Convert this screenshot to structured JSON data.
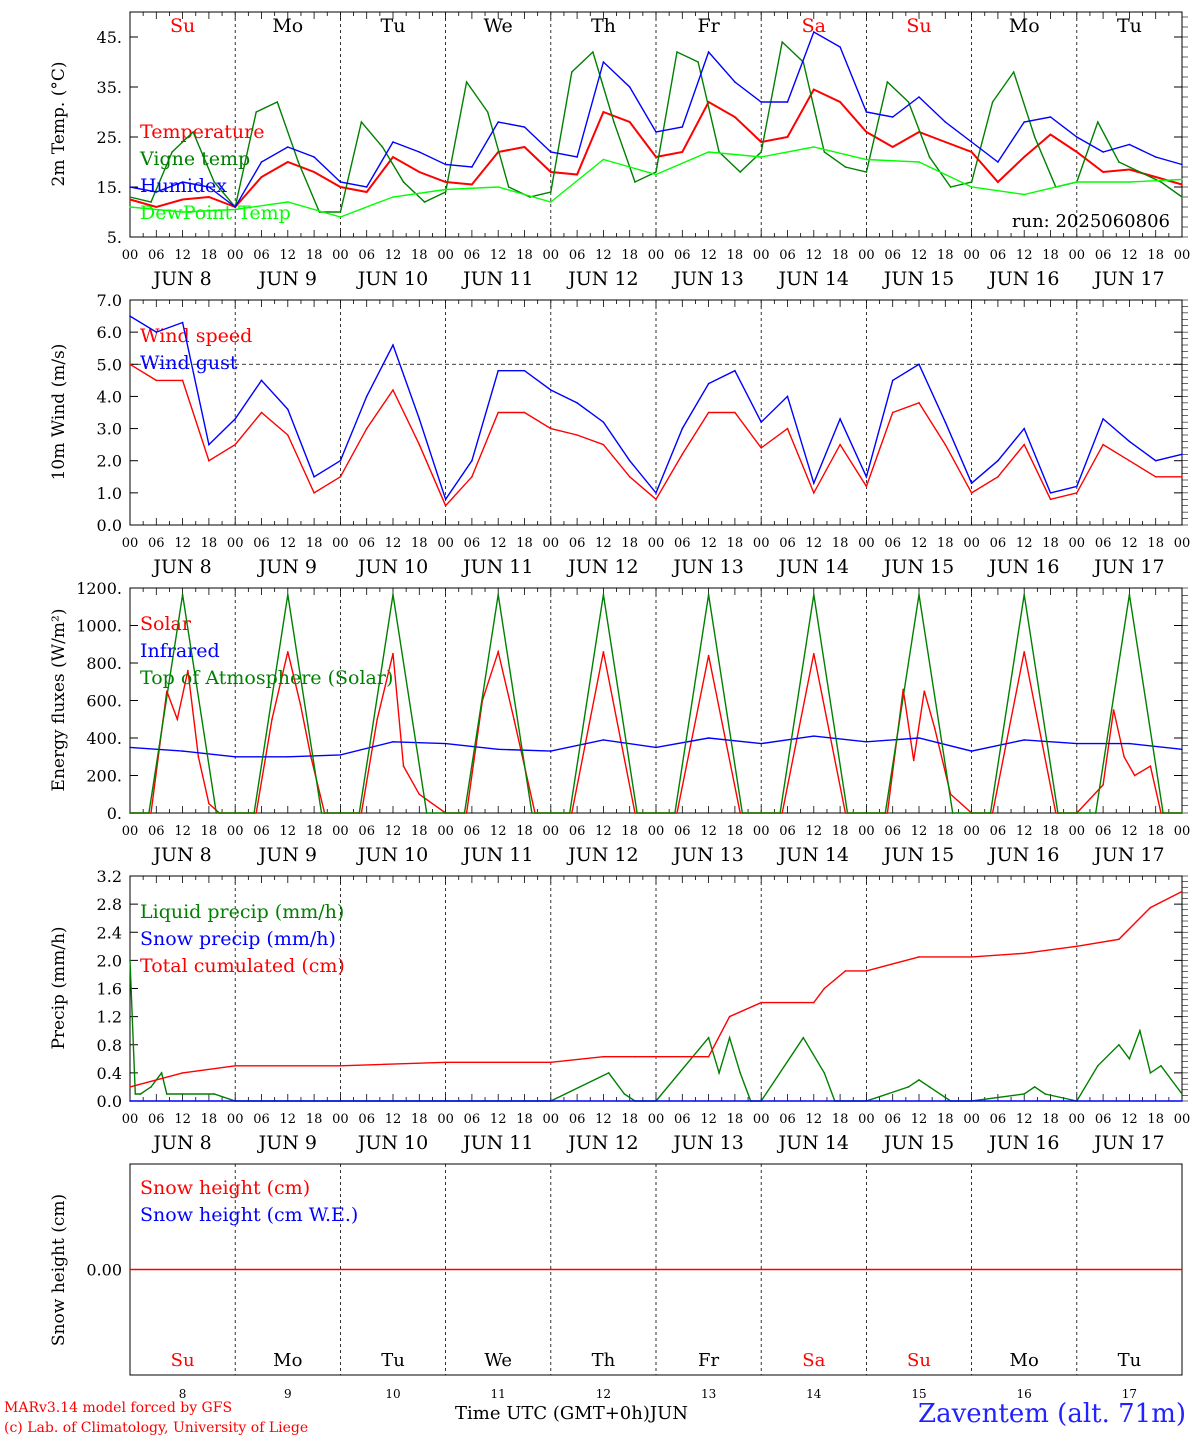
{
  "run_label": "run: 2025060806",
  "weekday_colors": {
    "weekend": "#ff0000",
    "weekday": "#000000"
  },
  "weekdays": [
    "Su",
    "Mo",
    "Tu",
    "We",
    "Th",
    "Fr",
    "Sa",
    "Su",
    "Mo",
    "Tu"
  ],
  "date_labels": [
    "JUN  8",
    "JUN  9",
    "JUN 10",
    "JUN 11",
    "JUN 12",
    "JUN 13",
    "JUN 14",
    "JUN 15",
    "JUN 16",
    "JUN 17"
  ],
  "hour_ticks": [
    "00",
    "06",
    "12",
    "18"
  ],
  "final_hour_tick": "00",
  "bottom_day_numbers": [
    "8",
    "9",
    "10",
    "11",
    "12",
    "13",
    "14",
    "15",
    "16",
    "17"
  ],
  "footer": {
    "model_line": "MARv3.14 model forced by GFS",
    "credit_line": "(c) Lab. of Climatology, University of Liege",
    "xlabel": "Time UTC (GMT+0h)",
    "month": "JUN",
    "station": "Zaventem (alt. 71m)"
  },
  "chart_data": [
    {
      "type": "line",
      "ylabel": "2m Temp. (°C)",
      "ylim": [
        5,
        50
      ],
      "yticks": [
        5,
        15,
        25,
        35,
        45
      ],
      "ytick_labels": [
        "5.",
        "15.",
        "25.",
        "35.",
        "45."
      ],
      "x_unit": "days since Jun 8 00 UTC",
      "series": [
        {
          "name": "Temperature",
          "color": "#ff0000",
          "x": [
            0,
            0.25,
            0.5,
            0.75,
            1,
            1.25,
            1.5,
            1.75,
            2,
            2.25,
            2.5,
            2.75,
            3,
            3.25,
            3.5,
            3.75,
            4,
            4.25,
            4.5,
            4.75,
            5,
            5.25,
            5.5,
            5.75,
            6,
            6.25,
            6.5,
            6.75,
            7,
            7.25,
            7.5,
            7.75,
            8,
            8.25,
            8.5,
            8.75,
            9,
            9.25,
            9.5,
            9.75,
            10
          ],
          "values": [
            12.5,
            11,
            12.5,
            13,
            11,
            17,
            20,
            18,
            15,
            14,
            21,
            18,
            16,
            15.5,
            22,
            23,
            18,
            17.5,
            30,
            28,
            21,
            22,
            32,
            29,
            24,
            25,
            34.5,
            32,
            26,
            23,
            26,
            24,
            22,
            16,
            21,
            25.5,
            22,
            18,
            18.5,
            17,
            15.5
          ]
        },
        {
          "name": "Vigne temp",
          "color": "#008000",
          "x": [
            0,
            0.2,
            0.4,
            0.6,
            0.8,
            1,
            1.2,
            1.4,
            1.6,
            1.8,
            2,
            2.2,
            2.4,
            2.6,
            2.8,
            3,
            3.2,
            3.4,
            3.6,
            3.8,
            4,
            4.2,
            4.4,
            4.6,
            4.8,
            5,
            5.2,
            5.4,
            5.6,
            5.8,
            6,
            6.2,
            6.4,
            6.6,
            6.8,
            7,
            7.2,
            7.4,
            7.6,
            7.8,
            8,
            8.2,
            8.4,
            8.6,
            8.8,
            9,
            9.2,
            9.4,
            9.6,
            9.8,
            10
          ],
          "values": [
            13,
            12,
            22,
            26,
            16,
            11,
            30,
            32,
            20,
            10,
            10,
            28,
            23,
            16,
            12,
            14,
            36,
            30,
            15,
            13,
            14,
            38,
            42,
            28,
            16,
            18,
            42,
            40,
            22,
            18,
            22,
            44,
            40,
            22,
            19,
            18,
            36,
            32,
            21,
            15,
            16,
            32,
            38,
            25,
            15,
            16,
            28,
            20,
            18,
            16,
            13
          ]
        },
        {
          "name": "Humidex",
          "color": "#0000ff",
          "x": [
            0,
            0.25,
            0.5,
            0.75,
            1,
            1.25,
            1.5,
            1.75,
            2,
            2.25,
            2.5,
            2.75,
            3,
            3.25,
            3.5,
            3.75,
            4,
            4.25,
            4.5,
            4.75,
            5,
            5.25,
            5.5,
            5.75,
            6,
            6.25,
            6.5,
            6.75,
            7,
            7.25,
            7.5,
            7.75,
            8,
            8.25,
            8.5,
            8.75,
            9,
            9.25,
            9.5,
            9.75,
            10
          ],
          "values": [
            15,
            14,
            16,
            15,
            11,
            20,
            23,
            21,
            16,
            15,
            24,
            22,
            19.5,
            19,
            28,
            27,
            22,
            21,
            40,
            35,
            26,
            27,
            42,
            36,
            32,
            32,
            46,
            43,
            30,
            29,
            33,
            28,
            24,
            20,
            28,
            29,
            25,
            22,
            23.5,
            21,
            19.5
          ]
        },
        {
          "name": "DewPoint Temp",
          "color": "#00ff00",
          "x": [
            0,
            0.5,
            1,
            1.5,
            2,
            2.5,
            3,
            3.5,
            4,
            4.5,
            5,
            5.5,
            6,
            6.5,
            7,
            7.5,
            8,
            8.5,
            9,
            9.5,
            10
          ],
          "values": [
            11,
            10,
            10.5,
            12,
            9,
            13,
            14.5,
            15,
            12,
            20.5,
            17.5,
            22,
            21,
            23,
            20.5,
            20,
            15,
            13.5,
            16,
            16,
            16.5
          ]
        }
      ]
    },
    {
      "type": "line",
      "ylabel": "10m Wind (m/s)",
      "ylim": [
        0,
        7
      ],
      "yticks": [
        0,
        1,
        2,
        3,
        4,
        5,
        6,
        7
      ],
      "ytick_labels": [
        "0.0",
        "1.0",
        "2.0",
        "3.0",
        "4.0",
        "5.0",
        "6.0",
        "7.0"
      ],
      "reference_line": 5,
      "series": [
        {
          "name": "Wind speed",
          "color": "#ff0000",
          "x": [
            0,
            0.25,
            0.5,
            0.75,
            1,
            1.25,
            1.5,
            1.75,
            2,
            2.25,
            2.5,
            2.75,
            3,
            3.25,
            3.5,
            3.75,
            4,
            4.25,
            4.5,
            4.75,
            5,
            5.25,
            5.5,
            5.75,
            6,
            6.25,
            6.5,
            6.75,
            7,
            7.25,
            7.5,
            7.75,
            8,
            8.25,
            8.5,
            8.75,
            9,
            9.25,
            9.5,
            9.75,
            10
          ],
          "values": [
            5,
            4.5,
            4.5,
            2,
            2.5,
            3.5,
            2.8,
            1,
            1.5,
            3,
            4.2,
            2.5,
            0.6,
            1.5,
            3.5,
            3.5,
            3,
            2.8,
            2.5,
            1.5,
            0.8,
            2.2,
            3.5,
            3.5,
            2.4,
            3,
            1,
            2.5,
            1.2,
            3.5,
            3.8,
            2.5,
            1,
            1.5,
            2.5,
            0.8,
            1,
            2.5,
            2,
            1.5,
            1.5
          ]
        },
        {
          "name": "Wind gust",
          "color": "#0000ff",
          "x": [
            0,
            0.25,
            0.5,
            0.75,
            1,
            1.25,
            1.5,
            1.75,
            2,
            2.25,
            2.5,
            2.75,
            3,
            3.25,
            3.5,
            3.75,
            4,
            4.25,
            4.5,
            4.75,
            5,
            5.25,
            5.5,
            5.75,
            6,
            6.25,
            6.5,
            6.75,
            7,
            7.25,
            7.5,
            7.75,
            8,
            8.25,
            8.5,
            8.75,
            9,
            9.25,
            9.5,
            9.75,
            10
          ],
          "values": [
            6.5,
            6,
            6.3,
            2.5,
            3.3,
            4.5,
            3.6,
            1.5,
            2,
            4,
            5.6,
            3.3,
            0.8,
            2,
            4.8,
            4.8,
            4.2,
            3.8,
            3.2,
            2,
            1,
            3,
            4.4,
            4.8,
            3.2,
            4,
            1.3,
            3.3,
            1.5,
            4.5,
            5,
            3.2,
            1.3,
            2,
            3,
            1,
            1.2,
            3.3,
            2.6,
            2,
            2.2
          ]
        }
      ]
    },
    {
      "type": "line",
      "ylabel": "Energy fluxes (W/m²)",
      "ylim": [
        0,
        1200
      ],
      "yticks": [
        0,
        200,
        400,
        600,
        800,
        1000,
        1200
      ],
      "ytick_labels": [
        "0.",
        "200.",
        "400.",
        "600.",
        "800.",
        "1000.",
        "1200."
      ],
      "series": [
        {
          "name": "Solar",
          "color": "#ff0000",
          "x": [
            0,
            0.2,
            0.35,
            0.45,
            0.55,
            0.65,
            0.75,
            0.85,
            1,
            1.2,
            1.35,
            1.5,
            1.62,
            1.72,
            1.85,
            2,
            2.2,
            2.35,
            2.5,
            2.6,
            2.75,
            3,
            3.2,
            3.35,
            3.5,
            3.65,
            3.85,
            4,
            4.2,
            4.5,
            4.8,
            5,
            5.2,
            5.5,
            5.8,
            6,
            6.2,
            6.5,
            6.8,
            7,
            7.2,
            7.35,
            7.45,
            7.55,
            7.65,
            7.8,
            8,
            8.2,
            8.5,
            8.8,
            9,
            9.25,
            9.35,
            9.45,
            9.55,
            9.7,
            9.8,
            10
          ],
          "values": [
            0,
            0,
            650,
            500,
            760,
            300,
            50,
            0,
            0,
            0,
            500,
            860,
            580,
            300,
            0,
            0,
            0,
            500,
            850,
            250,
            100,
            0,
            0,
            600,
            860,
            500,
            0,
            0,
            0,
            860,
            0,
            0,
            0,
            840,
            0,
            0,
            0,
            850,
            0,
            0,
            0,
            660,
            280,
            650,
            450,
            100,
            0,
            0,
            860,
            0,
            0,
            150,
            550,
            300,
            200,
            250,
            0,
            0
          ]
        },
        {
          "name": "Infrared",
          "color": "#0000ff",
          "x": [
            0,
            0.5,
            1,
            1.5,
            2,
            2.5,
            3,
            3.5,
            4,
            4.5,
            5,
            5.5,
            6,
            6.5,
            7,
            7.5,
            8,
            8.5,
            9,
            9.5,
            10
          ],
          "values": [
            350,
            330,
            300,
            300,
            310,
            380,
            370,
            340,
            330,
            390,
            350,
            400,
            370,
            410,
            380,
            400,
            330,
            390,
            370,
            370,
            340
          ]
        },
        {
          "name": "Top of Atmosphere (Solar)",
          "color": "#008000",
          "x": [
            0,
            0.18,
            0.5,
            0.82,
            1,
            1.18,
            1.5,
            1.82,
            2,
            2.18,
            2.5,
            2.82,
            3,
            3.18,
            3.5,
            3.82,
            4,
            4.18,
            4.5,
            4.82,
            5,
            5.18,
            5.5,
            5.82,
            6,
            6.18,
            6.5,
            6.82,
            7,
            7.18,
            7.5,
            7.82,
            8,
            8.18,
            8.5,
            8.82,
            9,
            9.18,
            9.5,
            9.82,
            10
          ],
          "values": [
            0,
            0,
            1165,
            0,
            0,
            0,
            1165,
            0,
            0,
            0,
            1165,
            0,
            0,
            0,
            1165,
            0,
            0,
            0,
            1165,
            0,
            0,
            0,
            1165,
            0,
            0,
            0,
            1165,
            0,
            0,
            0,
            1165,
            0,
            0,
            0,
            1165,
            0,
            0,
            0,
            1165,
            0,
            0
          ]
        }
      ]
    },
    {
      "type": "line",
      "ylabel": "Precip (mm/h)",
      "ylim": [
        0,
        3.2
      ],
      "yticks": [
        0,
        0.4,
        0.8,
        1.2,
        1.6,
        2.0,
        2.4,
        2.8,
        3.2
      ],
      "ytick_labels": [
        "0.0",
        "0.4",
        "0.8",
        "1.2",
        "1.6",
        "2.0",
        "2.4",
        "2.8",
        "3.2"
      ],
      "series": [
        {
          "name": "Liquid precip (mm/h)",
          "color": "#008000",
          "x": [
            0,
            0.05,
            0.1,
            0.2,
            0.3,
            0.35,
            0.5,
            0.8,
            1,
            2,
            4,
            4.55,
            4.7,
            4.8,
            5,
            5.5,
            5.6,
            5.7,
            5.8,
            5.9,
            6,
            6.4,
            6.6,
            6.7,
            7,
            7.4,
            7.5,
            7.6,
            7.8,
            8,
            8.5,
            8.6,
            8.7,
            9,
            9.2,
            9.4,
            9.5,
            9.6,
            9.7,
            9.8,
            10
          ],
          "values": [
            2.0,
            0.1,
            0.1,
            0.2,
            0.4,
            0.1,
            0.1,
            0.1,
            0,
            0,
            0,
            0.4,
            0.1,
            0,
            0,
            0.9,
            0.4,
            0.9,
            0.4,
            0,
            0,
            0.9,
            0.4,
            0,
            0,
            0.2,
            0.3,
            0.2,
            0,
            0,
            0.1,
            0.2,
            0.1,
            0,
            0.5,
            0.8,
            0.6,
            1.0,
            0.4,
            0.5,
            0.1
          ]
        },
        {
          "name": "Snow precip (mm/h)",
          "color": "#0000ff",
          "x": [
            0,
            10
          ],
          "values": [
            0,
            0
          ]
        },
        {
          "name": "Total cumulated (cm)",
          "color": "#ff0000",
          "x": [
            0,
            0.5,
            1,
            2,
            3,
            4,
            4.5,
            4.8,
            5.5,
            5.7,
            6,
            6.5,
            6.6,
            6.8,
            7,
            7.5,
            8,
            8.5,
            9,
            9.4,
            9.7,
            10
          ],
          "values": [
            0.2,
            0.4,
            0.5,
            0.5,
            0.55,
            0.55,
            0.63,
            0.63,
            0.63,
            1.2,
            1.4,
            1.4,
            1.6,
            1.85,
            1.85,
            2.05,
            2.05,
            2.1,
            2.2,
            2.3,
            2.75,
            2.98
          ]
        }
      ]
    },
    {
      "type": "line",
      "ylabel": "Snow height (cm)",
      "yticks": [
        0
      ],
      "ytick_labels": [
        "0.00"
      ],
      "series": [
        {
          "name": "Snow height (cm)",
          "color": "#ff0000",
          "x": [
            0,
            10
          ],
          "values": [
            0,
            0
          ]
        },
        {
          "name": "Snow height (cm W.E.)",
          "color": "#0000ff",
          "x": [],
          "values": []
        }
      ]
    }
  ]
}
